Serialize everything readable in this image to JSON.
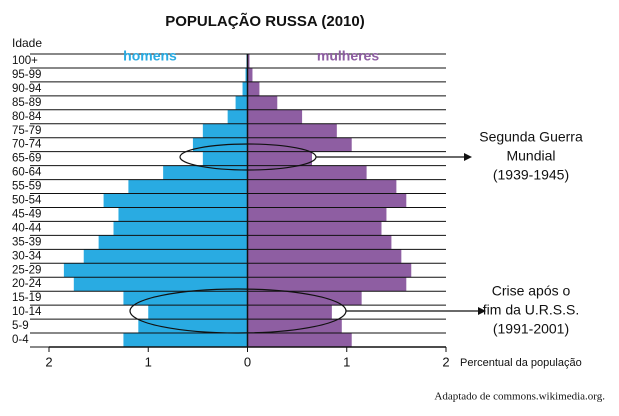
{
  "chart_data": {
    "type": "pyramid",
    "title": "POPULAÇÃO RUSSA (2010)",
    "y_label": "Idade",
    "x_label": "Percentual da população",
    "categories": [
      "100+",
      "95-99",
      "90-94",
      "85-89",
      "80-84",
      "75-79",
      "70-74",
      "65-69",
      "60-64",
      "55-59",
      "50-54",
      "45-49",
      "40-44",
      "35-39",
      "30-34",
      "25-29",
      "20-24",
      "15-19",
      "10-14",
      "5-9",
      "0-4"
    ],
    "series": [
      {
        "name": "homens",
        "color": "#29abe2",
        "values": [
          -0.01,
          -0.02,
          -0.05,
          -0.12,
          -0.2,
          -0.45,
          -0.55,
          -0.45,
          -0.85,
          -1.2,
          -1.45,
          -1.3,
          -1.35,
          -1.5,
          -1.65,
          -1.85,
          -1.75,
          -1.25,
          -1.0,
          -1.1,
          -1.25
        ]
      },
      {
        "name": "mulheres",
        "color": "#8e5ea2",
        "values": [
          0.02,
          0.05,
          0.12,
          0.3,
          0.55,
          0.9,
          1.05,
          0.65,
          1.2,
          1.5,
          1.6,
          1.4,
          1.35,
          1.45,
          1.55,
          1.65,
          1.6,
          1.15,
          0.85,
          0.95,
          1.05
        ]
      }
    ],
    "xlim": [
      -2,
      2
    ],
    "xticks": [
      {
        "value": -2,
        "label": "2"
      },
      {
        "value": -1,
        "label": "1"
      },
      0,
      1,
      2
    ],
    "annotations": [
      {
        "lines": [
          "Segunda Guerra",
          "Mundial",
          "(1939-1945)"
        ]
      },
      {
        "lines": [
          "Crise após o",
          "fim da U.R.S.S.",
          "(1991-2001)"
        ]
      }
    ],
    "source": "Adaptado de commons.wikimedia.org."
  }
}
